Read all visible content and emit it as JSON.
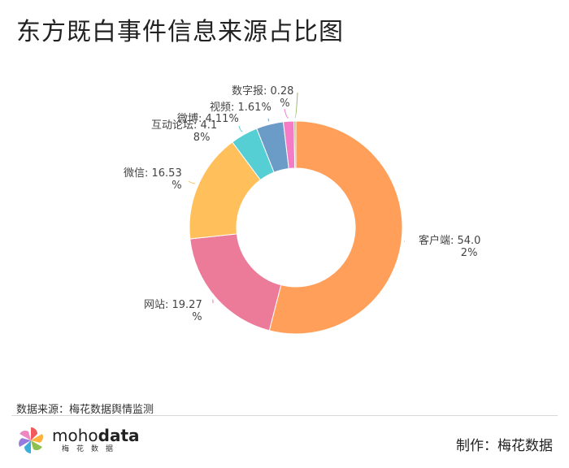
{
  "title": "东方既白事件信息来源占比图",
  "source_text": "数据来源：梅花数据舆情监测",
  "credit_text": "制作：梅花数据",
  "logo": {
    "brand_light": "moho",
    "brand_bold": "data",
    "brand_sub": "梅花数据",
    "icon": "pinwheel-logo-icon"
  },
  "chart_data": {
    "type": "pie",
    "donut": true,
    "title": "东方既白事件信息来源占比图",
    "legend": "none",
    "series": [
      {
        "name": "客户端",
        "value": 54.02,
        "label_lines": [
          "客户端: 54.0",
          "2%"
        ],
        "color": "#FF9F5A"
      },
      {
        "name": "网站",
        "value": 19.27,
        "label_lines": [
          "网站: 19.27",
          "%"
        ],
        "color": "#EC7B9A"
      },
      {
        "name": "微信",
        "value": 16.53,
        "label_lines": [
          "微信: 16.53",
          "%"
        ],
        "color": "#FFC05C"
      },
      {
        "name": "互动论坛",
        "value": 4.18,
        "label_lines": [
          "互动论坛: 4.1",
          "8%"
        ],
        "color": "#55CFD4"
      },
      {
        "name": "微博",
        "value": 4.11,
        "label_lines": [
          "微博: 4.11%"
        ],
        "color": "#6A9CC7"
      },
      {
        "name": "视频",
        "value": 1.61,
        "label_lines": [
          "视频: 1.61%"
        ],
        "color": "#F47BC5"
      },
      {
        "name": "数字报",
        "value": 0.28,
        "label_lines": [
          "数字报: 0.28",
          "%"
        ],
        "color": "#9BB86A"
      }
    ]
  }
}
